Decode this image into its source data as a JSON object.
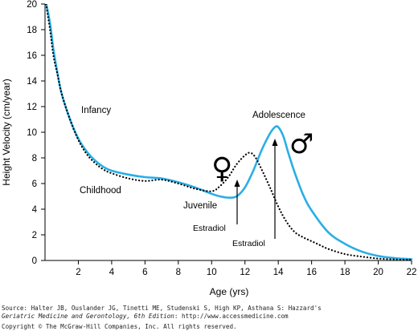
{
  "chart_data": {
    "type": "line",
    "title": "",
    "xlabel": "Age (yrs)",
    "ylabel": "Height Velocity (cm/year)",
    "xlim": [
      0,
      22
    ],
    "ylim": [
      0,
      20
    ],
    "x_ticks": [
      2,
      4,
      6,
      8,
      10,
      12,
      14,
      16,
      18,
      20,
      22
    ],
    "y_ticks": [
      0,
      2,
      4,
      6,
      8,
      10,
      12,
      14,
      16,
      18,
      20
    ],
    "grid": false,
    "series": [
      {
        "name": "♂",
        "style": "solid",
        "color": "#29aee6",
        "x": [
          0.0,
          0.3,
          0.5,
          0.75,
          1.0,
          1.5,
          2.0,
          2.5,
          3.0,
          3.5,
          4.0,
          5.0,
          6.0,
          7.0,
          8.0,
          9.0,
          10.0,
          10.5,
          11.0,
          11.5,
          12.0,
          12.5,
          13.0,
          13.5,
          13.8,
          14.0,
          14.3,
          14.6,
          15.0,
          15.5,
          16.0,
          17.0,
          18.0,
          19.0,
          20.0,
          21.0,
          22.0
        ],
        "y": [
          20.5,
          18.5,
          16.5,
          14.6,
          13.0,
          11.0,
          9.5,
          8.5,
          7.8,
          7.3,
          7.0,
          6.7,
          6.5,
          6.4,
          6.1,
          5.7,
          5.2,
          5.0,
          4.9,
          5.0,
          5.7,
          7.0,
          8.6,
          9.9,
          10.4,
          10.4,
          9.7,
          8.4,
          6.8,
          5.1,
          3.9,
          2.2,
          1.3,
          0.7,
          0.35,
          0.18,
          0.1
        ]
      },
      {
        "name": "♀",
        "style": "dotted",
        "color": "#000000",
        "x": [
          0.0,
          0.3,
          0.5,
          0.75,
          1.0,
          1.5,
          2.0,
          2.5,
          3.0,
          3.5,
          4.0,
          5.0,
          6.0,
          7.0,
          8.0,
          9.0,
          10.0,
          10.5,
          11.0,
          11.5,
          12.0,
          12.3,
          12.6,
          13.0,
          13.5,
          14.0,
          14.5,
          15.0,
          15.5,
          16.0,
          16.5,
          17.0,
          18.0,
          19.0,
          20.0,
          21.0,
          22.0
        ],
        "y": [
          20.5,
          18.0,
          16.0,
          14.5,
          13.0,
          11.0,
          9.4,
          8.3,
          7.6,
          7.1,
          6.8,
          6.4,
          6.2,
          6.3,
          6.0,
          5.6,
          5.4,
          5.8,
          6.5,
          7.5,
          8.2,
          8.4,
          8.1,
          7.1,
          5.7,
          4.2,
          3.0,
          2.2,
          1.8,
          1.5,
          1.2,
          0.9,
          0.5,
          0.3,
          0.15,
          0.08,
          0.05
        ]
      }
    ],
    "annotations": {
      "infancy": "Infancy",
      "childhood": "Childhood",
      "juvenile": "Juvenile",
      "adolescence": "Adolescence",
      "estradiol_female": "Estradiol",
      "estradiol_male": "Estradiol",
      "female_symbol": "♀",
      "male_symbol": "♂"
    }
  },
  "source": {
    "line1": "Source: Halter JB, Ouslander JG, Tinetti ME, Studenski S, High KP, Asthana S: Hazzard's",
    "line2_title": "Geriatric Medicine and Gerontology, 6th Edition",
    "line2_rest": ": http://www.accessmedicine.com",
    "copyright": "Copyright © The McGraw-Hill Companies, Inc. All rights reserved."
  }
}
